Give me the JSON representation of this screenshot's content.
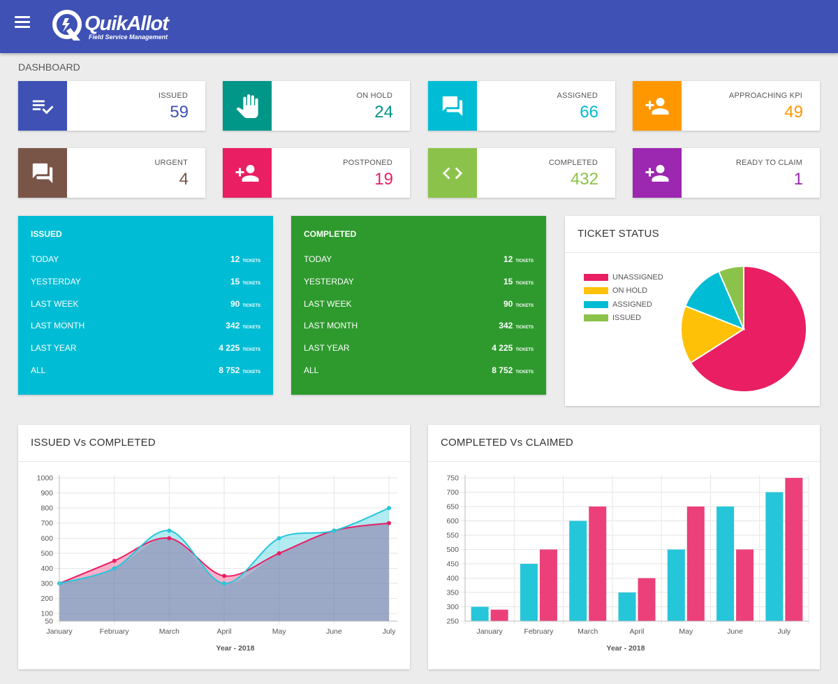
{
  "app": {
    "brand": "QuikAllot",
    "tagline": "Field Service Management",
    "page_title": "DASHBOARD"
  },
  "colors": {
    "header": "#3f51b5",
    "issued": "#3f51b5",
    "on_hold": "#009688",
    "assigned": "#00bcd4",
    "approaching_kpi": "#ff9800",
    "urgent": "#795548",
    "postponed": "#e91e63",
    "completed": "#8bc34a",
    "ready_to_claim": "#9c27b0",
    "summary_issued_bg": "#00bcd4",
    "summary_completed_bg": "#2e9a2e"
  },
  "stats": [
    {
      "label": "ISSUED",
      "value": "59",
      "icon": "playlist-check-icon",
      "color": "#3f51b5"
    },
    {
      "label": "ON HOLD",
      "value": "24",
      "icon": "hand-icon",
      "color": "#009688"
    },
    {
      "label": "ASSIGNED",
      "value": "66",
      "icon": "forum-icon",
      "color": "#00bcd4"
    },
    {
      "label": "APPROACHING KPI",
      "value": "49",
      "icon": "person-add-icon",
      "color": "#ff9800"
    },
    {
      "label": "URGENT",
      "value": "4",
      "icon": "forum-icon",
      "color": "#795548"
    },
    {
      "label": "POSTPONED",
      "value": "19",
      "icon": "person-add-icon",
      "color": "#e91e63"
    },
    {
      "label": "COMPLETED",
      "value": "432",
      "icon": "code-icon",
      "color": "#8bc34a"
    },
    {
      "label": "READY TO CLAIM",
      "value": "1",
      "icon": "person-add-icon",
      "color": "#9c27b0"
    }
  ],
  "summary": {
    "issued": {
      "title": "ISSUED",
      "unit": "TICKETS",
      "rows": [
        {
          "label": "TODAY",
          "value": "12"
        },
        {
          "label": "YESTERDAY",
          "value": "15"
        },
        {
          "label": "LAST WEEK",
          "value": "90"
        },
        {
          "label": "LAST MONTH",
          "value": "342"
        },
        {
          "label": "LAST YEAR",
          "value": "4 225"
        },
        {
          "label": "ALL",
          "value": "8 752"
        }
      ]
    },
    "completed": {
      "title": "COMPLETED",
      "unit": "TICKETS",
      "rows": [
        {
          "label": "TODAY",
          "value": "12"
        },
        {
          "label": "YESTERDAY",
          "value": "15"
        },
        {
          "label": "LAST WEEK",
          "value": "90"
        },
        {
          "label": "LAST MONTH",
          "value": "342"
        },
        {
          "label": "LAST YEAR",
          "value": "4 225"
        },
        {
          "label": "ALL",
          "value": "8 752"
        }
      ]
    }
  },
  "chart_data": [
    {
      "type": "pie",
      "title": "TICKET STATUS",
      "legend": "left",
      "slices": [
        {
          "name": "UNASSIGNED",
          "value": 66,
          "color": "#e91e63"
        },
        {
          "name": "ON HOLD",
          "value": 15,
          "color": "#ffc107"
        },
        {
          "name": "ASSIGNED",
          "value": 12.5,
          "color": "#00bcd4"
        },
        {
          "name": "ISSUED",
          "value": 6.5,
          "color": "#8bc34a"
        }
      ]
    },
    {
      "type": "area",
      "title": "ISSUED Vs COMPLETED",
      "xlabel": "Year - 2018",
      "categories": [
        "January",
        "February",
        "March",
        "April",
        "May",
        "June",
        "July"
      ],
      "y_ticks": [
        50,
        100,
        200,
        300,
        400,
        500,
        600,
        700,
        800,
        900,
        1000
      ],
      "ylim": [
        50,
        1000
      ],
      "grid": true,
      "series": [
        {
          "values": [
            300,
            450,
            600,
            350,
            500,
            650,
            700
          ],
          "color": "#e91e63"
        },
        {
          "values": [
            300,
            400,
            650,
            300,
            600,
            650,
            800
          ],
          "color": "#26c6da"
        }
      ]
    },
    {
      "type": "bar",
      "title": "COMPLETED Vs CLAIMED",
      "xlabel": "Year - 2018",
      "categories": [
        "January",
        "February",
        "March",
        "April",
        "May",
        "June",
        "July"
      ],
      "y_ticks": [
        250,
        300,
        350,
        400,
        450,
        500,
        550,
        600,
        650,
        700,
        750
      ],
      "ylim": [
        250,
        750
      ],
      "grid": true,
      "series": [
        {
          "values": [
            300,
            450,
            600,
            350,
            500,
            650,
            700
          ],
          "color": "#26c6da"
        },
        {
          "values": [
            290,
            500,
            650,
            400,
            650,
            500,
            750
          ],
          "color": "#ec407a"
        }
      ]
    }
  ]
}
